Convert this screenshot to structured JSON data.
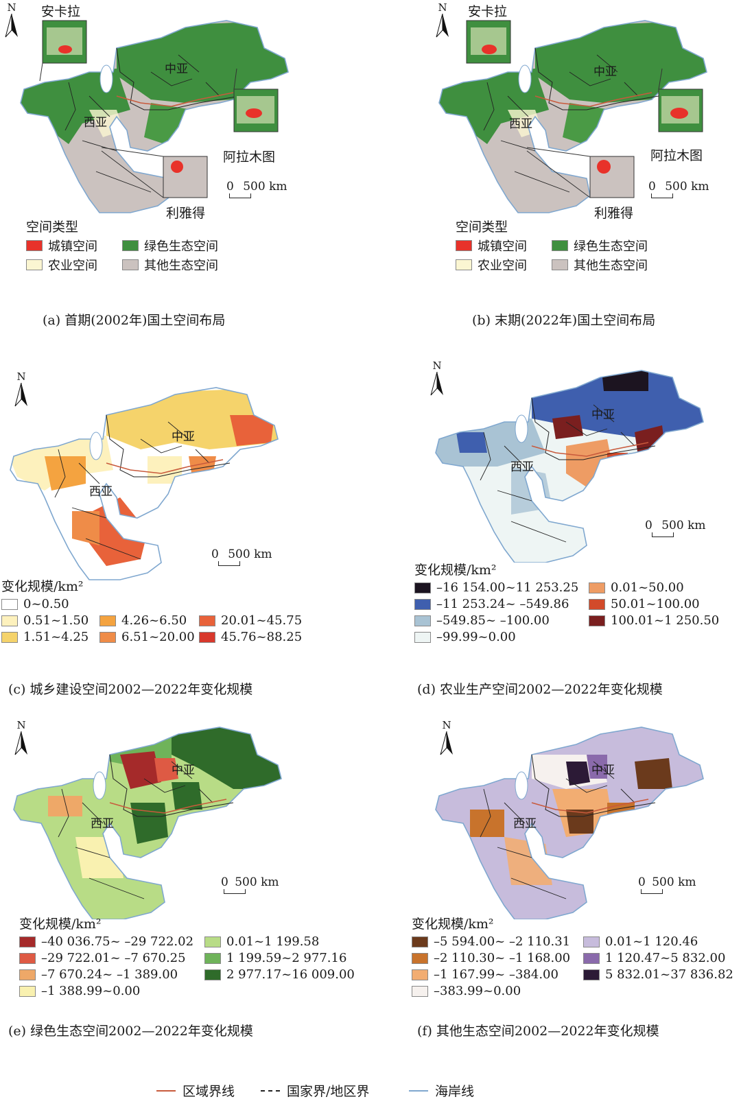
{
  "panels": {
    "a": {
      "caption": "(a) 首期(2002年)国土空间布局"
    },
    "b": {
      "caption": "(b) 末期(2022年)国土空间布局"
    },
    "c": {
      "caption": "(c) 城乡建设空间2002—2022年变化规模"
    },
    "d": {
      "caption": "(d) 农业生产空间2002—2022年变化规模"
    },
    "e": {
      "caption": "(e) 绿色生态空间2002—2022年变化规模"
    },
    "f": {
      "caption": "(f) 其他生态空间2002—2022年变化规模"
    }
  },
  "labels": {
    "central_asia": "中亚",
    "west_asia": "西亚",
    "ankara": "安卡拉",
    "almaty": "阿拉木图",
    "riyadh": "利雅得",
    "north": "N",
    "scale_zero": "0",
    "scale_dist": "500 km"
  },
  "space_legend": {
    "title": "空间类型",
    "items": [
      {
        "label": "城镇空间",
        "color": "#e8322a"
      },
      {
        "label": "绿色生态空间",
        "color": "#3f8f3f"
      },
      {
        "label": "农业空间",
        "color": "#fbf6d2"
      },
      {
        "label": "其他生态空间",
        "color": "#cbc2bf"
      }
    ]
  },
  "legend_c": {
    "title": "变化规模/km²",
    "items": [
      {
        "label": "0~0.50",
        "color": "#ffffff"
      },
      {
        "label": "0.51~1.50",
        "color": "#fdf1bd"
      },
      {
        "label": "1.51~4.25",
        "color": "#f5d36b"
      },
      {
        "label": "4.26~6.50",
        "color": "#f4a340"
      },
      {
        "label": "6.51~20.00",
        "color": "#ef8c48"
      },
      {
        "label": "20.01~45.75",
        "color": "#e8623a"
      },
      {
        "label": "45.76~88.25",
        "color": "#d8382c"
      }
    ]
  },
  "legend_d": {
    "title": "变化规模/km²",
    "items": [
      {
        "label": "–16 154.00~11 253.25",
        "color": "#1c1420"
      },
      {
        "label": "–11 253.24~ –549.86",
        "color": "#3f5fae"
      },
      {
        "label": "–549.85~ –100.00",
        "color": "#a9c3d4"
      },
      {
        "label": "–99.99~0.00",
        "color": "#eef5f4"
      },
      {
        "label": "0.01~50.00",
        "color": "#ee9c64"
      },
      {
        "label": "50.01~100.00",
        "color": "#d24a2a"
      },
      {
        "label": "100.01~1 250.50",
        "color": "#7a1f1f"
      }
    ]
  },
  "legend_e": {
    "title": "变化规模/km²",
    "items": [
      {
        "label": "–40 036.75~ –29 722.02",
        "color": "#a52a2a"
      },
      {
        "label": "–29 722.01~ –7 670.25",
        "color": "#de5a44"
      },
      {
        "label": "–7 670.24~ –1 389.00",
        "color": "#eea868"
      },
      {
        "label": "–1 388.99~0.00",
        "color": "#f9f1b0"
      },
      {
        "label": "0.01~1 199.58",
        "color": "#b8dc86"
      },
      {
        "label": "1 199.59~2 977.16",
        "color": "#6fb35a"
      },
      {
        "label": "2 977.17~16 009.00",
        "color": "#2f6b2a"
      }
    ]
  },
  "legend_f": {
    "title": "变化规模/km²",
    "items": [
      {
        "label": "–5 594.00~ –2 110.31",
        "color": "#6b3a1c"
      },
      {
        "label": "–2 110.30~ –1 168.00",
        "color": "#c8732c"
      },
      {
        "label": "–1 167.99~ –384.00",
        "color": "#f2ad72"
      },
      {
        "label": "–383.99~0.00",
        "color": "#f6f1ee"
      },
      {
        "label": "0.01~1 120.46",
        "color": "#c7bcdc"
      },
      {
        "label": "1 120.47~5 832.00",
        "color": "#8a6aab"
      },
      {
        "label": "5 832.01~37 836.82",
        "color": "#2c1a36"
      }
    ]
  },
  "line_legend": [
    {
      "label": "区域界线",
      "color": "#c85a3c"
    },
    {
      "label": "国家界/地区界",
      "color": "#222222"
    },
    {
      "label": "海岸线",
      "color": "#7fa7cf"
    }
  ]
}
